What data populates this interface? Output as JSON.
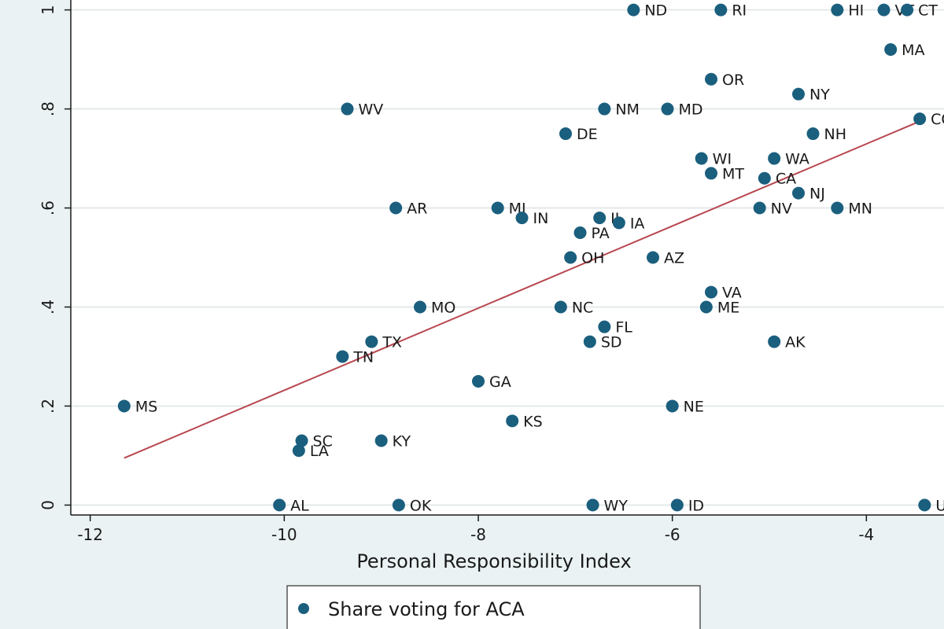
{
  "chart_data": {
    "type": "scatter",
    "xlabel": "Personal Responsibility Index",
    "ylabel": "",
    "xlim": [
      -12.2,
      -3.2
    ],
    "ylim": [
      -0.02,
      1.02
    ],
    "xticks": [
      {
        "value": -12,
        "label": "-12"
      },
      {
        "value": -10,
        "label": "-10"
      },
      {
        "value": -8,
        "label": "-8"
      },
      {
        "value": -6,
        "label": "-6"
      },
      {
        "value": -4,
        "label": "-4"
      }
    ],
    "yticks": [
      {
        "value": 0,
        "label": "0"
      },
      {
        "value": 0.2,
        "label": ".2"
      },
      {
        "value": 0.4,
        "label": ".4"
      },
      {
        "value": 0.6,
        "label": ".6"
      },
      {
        "value": 0.8,
        "label": ".8"
      },
      {
        "value": 1,
        "label": "1"
      }
    ],
    "grid": true,
    "legend": {
      "position": "bottom",
      "label": "Share voting for ACA"
    },
    "colors": {
      "marker": "#1b5f7e",
      "fit_line": "#b8474f",
      "grid": "#ffffff",
      "plot_bg": "#ffffff"
    },
    "series": [
      {
        "name": "Share voting for ACA",
        "points": [
          {
            "label": "ND",
            "x": -6.4,
            "y": 1.0
          },
          {
            "label": "RI",
            "x": -5.5,
            "y": 1.0
          },
          {
            "label": "HI",
            "x": -4.3,
            "y": 1.0
          },
          {
            "label": "VT",
            "x": -3.82,
            "y": 1.0
          },
          {
            "label": "CT",
            "x": -3.58,
            "y": 1.0
          },
          {
            "label": "MA",
            "x": -3.75,
            "y": 0.92
          },
          {
            "label": "OR",
            "x": -5.6,
            "y": 0.86
          },
          {
            "label": "NY",
            "x": -4.7,
            "y": 0.83
          },
          {
            "label": "WV",
            "x": -9.35,
            "y": 0.8
          },
          {
            "label": "NM",
            "x": -6.7,
            "y": 0.8
          },
          {
            "label": "MD",
            "x": -6.05,
            "y": 0.8
          },
          {
            "label": "CO",
            "x": -3.45,
            "y": 0.78
          },
          {
            "label": "DE",
            "x": -7.1,
            "y": 0.75
          },
          {
            "label": "NH",
            "x": -4.55,
            "y": 0.75
          },
          {
            "label": "WI",
            "x": -5.7,
            "y": 0.7
          },
          {
            "label": "WA",
            "x": -4.95,
            "y": 0.7
          },
          {
            "label": "MT",
            "x": -5.6,
            "y": 0.67
          },
          {
            "label": "CA",
            "x": -5.05,
            "y": 0.66
          },
          {
            "label": "NJ",
            "x": -4.7,
            "y": 0.63
          },
          {
            "label": "AR",
            "x": -8.85,
            "y": 0.6
          },
          {
            "label": "MI",
            "x": -7.8,
            "y": 0.6
          },
          {
            "label": "NV",
            "x": -5.1,
            "y": 0.6
          },
          {
            "label": "MN",
            "x": -4.3,
            "y": 0.6
          },
          {
            "label": "IN",
            "x": -7.55,
            "y": 0.58
          },
          {
            "label": "IL",
            "x": -6.75,
            "y": 0.58
          },
          {
            "label": "IA",
            "x": -6.55,
            "y": 0.57
          },
          {
            "label": "PA",
            "x": -6.95,
            "y": 0.55
          },
          {
            "label": "OH",
            "x": -7.05,
            "y": 0.5
          },
          {
            "label": "AZ",
            "x": -6.2,
            "y": 0.5
          },
          {
            "label": "VA",
            "x": -5.6,
            "y": 0.43
          },
          {
            "label": "MO",
            "x": -8.6,
            "y": 0.4
          },
          {
            "label": "NC",
            "x": -7.15,
            "y": 0.4
          },
          {
            "label": "ME",
            "x": -5.65,
            "y": 0.4
          },
          {
            "label": "FL",
            "x": -6.7,
            "y": 0.36
          },
          {
            "label": "TX",
            "x": -9.1,
            "y": 0.33
          },
          {
            "label": "SD",
            "x": -6.85,
            "y": 0.33
          },
          {
            "label": "AK",
            "x": -4.95,
            "y": 0.33
          },
          {
            "label": "TN",
            "x": -9.4,
            "y": 0.3
          },
          {
            "label": "GA",
            "x": -8.0,
            "y": 0.25
          },
          {
            "label": "MS",
            "x": -11.65,
            "y": 0.2
          },
          {
            "label": "NE",
            "x": -6.0,
            "y": 0.2
          },
          {
            "label": "KS",
            "x": -7.65,
            "y": 0.17
          },
          {
            "label": "SC",
            "x": -9.82,
            "y": 0.13
          },
          {
            "label": "KY",
            "x": -9.0,
            "y": 0.13
          },
          {
            "label": "LA",
            "x": -9.85,
            "y": 0.11
          },
          {
            "label": "AL",
            "x": -10.05,
            "y": 0.0
          },
          {
            "label": "OK",
            "x": -8.82,
            "y": 0.0
          },
          {
            "label": "WY",
            "x": -6.82,
            "y": 0.0
          },
          {
            "label": "ID",
            "x": -5.95,
            "y": 0.0
          },
          {
            "label": "UT",
            "x": -3.4,
            "y": 0.0
          }
        ]
      }
    ],
    "fit_line": {
      "x": [
        -11.65,
        -3.45
      ],
      "y": [
        0.095,
        0.775
      ]
    }
  }
}
